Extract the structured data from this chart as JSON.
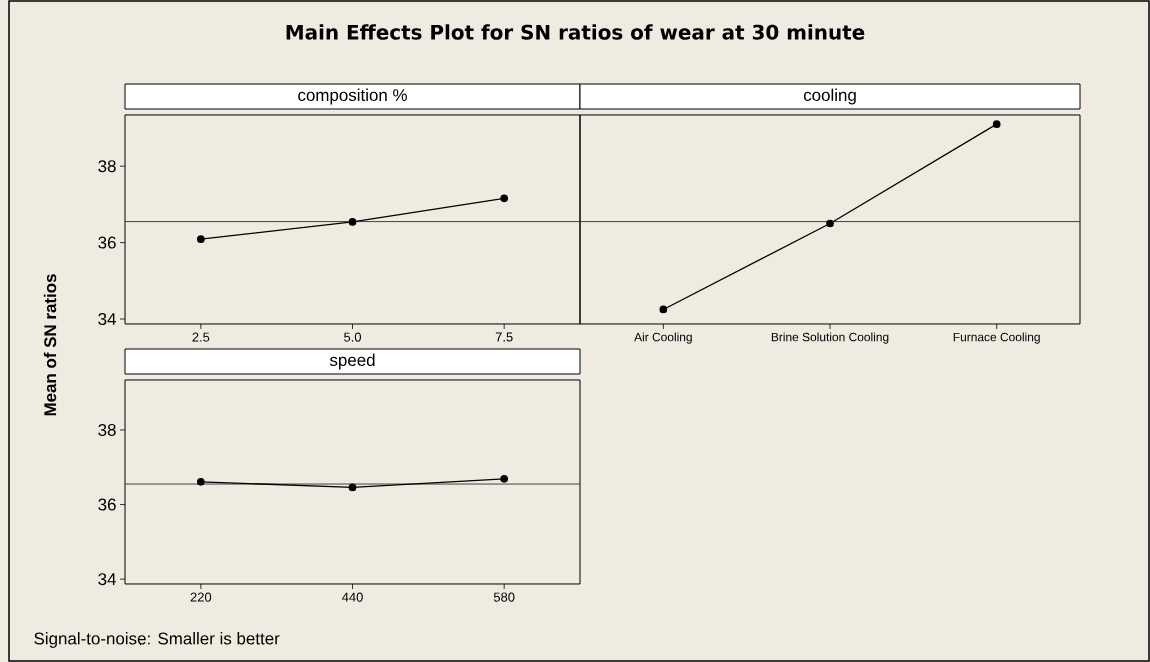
{
  "chart_data": [
    {
      "type": "line",
      "title": "composition %",
      "annotations": [
        "Main Effects Plot  for SN ratios of wear at 30 minute"
      ],
      "ylabel": "Mean of SN ratios",
      "categories": [
        "2.5",
        "5.0",
        "7.5"
      ],
      "values": [
        36.09,
        36.54,
        37.16
      ],
      "color": "#000000",
      "marker": "circle",
      "line_style": "solid",
      "ylim": [
        33.87,
        39.34
      ],
      "yticks": [
        34,
        36,
        38
      ],
      "ref_lines": [
        {
          "axis": "y",
          "value": 36.55,
          "color": "#404040"
        }
      ]
    },
    {
      "type": "line",
      "title": "cooling",
      "categories": [
        "Air Cooling",
        "Brine Solution Cooling",
        "Furnace Cooling"
      ],
      "values": [
        34.25,
        36.5,
        39.1
      ],
      "color": "#000000",
      "marker": "circle",
      "line_style": "solid",
      "ylim": [
        33.87,
        39.34
      ],
      "yticks": [
        34,
        36,
        38
      ],
      "tick_labels": "x",
      "ref_lines": [
        {
          "axis": "y",
          "value": 36.55,
          "color": "#404040"
        }
      ]
    },
    {
      "type": "line",
      "title": "speed",
      "annotations": [
        "Signal-to-noise: Smaller is better"
      ],
      "categories": [
        "220",
        "440",
        "580"
      ],
      "values": [
        36.61,
        36.46,
        36.69
      ],
      "color": "#000000",
      "marker": "circle",
      "line_style": "solid",
      "ylim": [
        33.87,
        39.34
      ],
      "yticks": [
        34,
        36,
        38
      ],
      "ref_lines": [
        {
          "axis": "y",
          "value": 36.55,
          "color": "#404040"
        }
      ]
    }
  ]
}
